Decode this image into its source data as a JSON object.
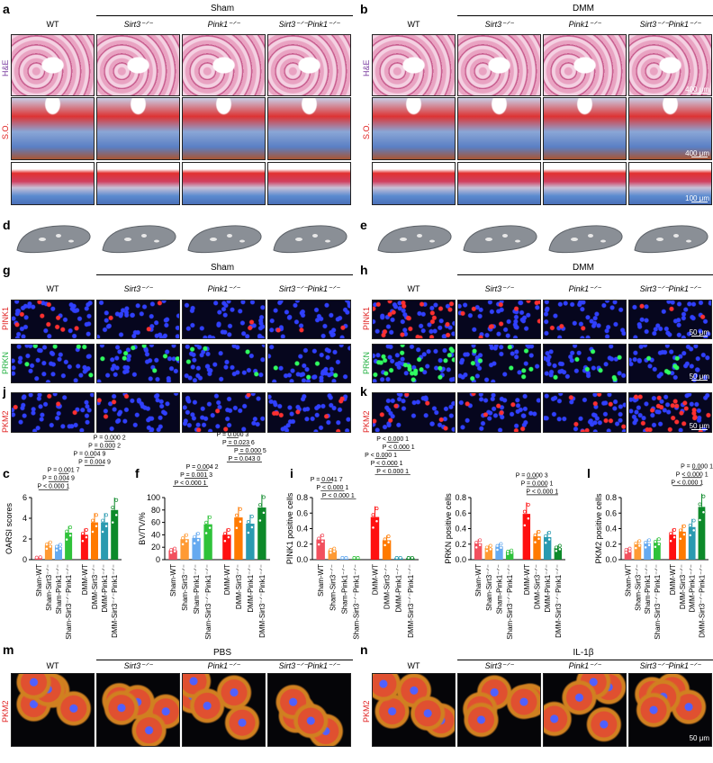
{
  "panel_letters": {
    "a": "a",
    "b": "b",
    "c": "c",
    "d": "d",
    "e": "e",
    "f": "f",
    "g": "g",
    "h": "h",
    "i": "i",
    "j": "j",
    "k": "k",
    "l": "l",
    "m": "m",
    "n": "n"
  },
  "groups": {
    "sham": "Sham",
    "dmm": "DMM",
    "pbs": "PBS",
    "il1b": "IL-1β"
  },
  "columns": [
    "WT",
    "Sirt3⁻ᐟ⁻",
    "Pink1⁻ᐟ⁻",
    "Sirt3⁻ᐟ⁻Pink1⁻ᐟ⁻"
  ],
  "stains": {
    "he": "H&E",
    "so": "S.O.",
    "pink1": "PINK1",
    "prkn": "PRKN",
    "pkm2": "PKM2"
  },
  "stain_colors": {
    "he": "#7b3fa0",
    "so": "#e02020",
    "pink1": "#e02020",
    "prkn": "#20b040",
    "pkm2": "#e02020"
  },
  "scale_bars": {
    "s400": "400 μm",
    "s100": "100 μm",
    "s50": "50 μm"
  },
  "chart_data": [
    {
      "type": "bar",
      "panel": "c",
      "ylabel": "OARSI scores",
      "ylim": [
        0,
        6
      ],
      "yticks": [
        "0",
        "2",
        "4",
        "6"
      ],
      "categories": [
        "Sham-WT",
        "Sham-Sirt3⁻ᐟ⁻",
        "Sham-Pink1⁻ᐟ⁻",
        "Sham-Sirt3⁻ᐟ⁻Pink1⁻ᐟ⁻",
        "DMM-WT",
        "DMM-Sirt3⁻ᐟ⁻",
        "DMM-Pink1⁻ᐟ⁻",
        "DMM-Sirt3⁻ᐟ⁻Pink1⁻ᐟ⁻"
      ],
      "values": [
        0.2,
        1.4,
        1.2,
        2.6,
        2.4,
        3.6,
        3.6,
        4.8
      ],
      "comparisons": [
        {
          "a": 0,
          "b": 3,
          "p": "P < 0.000 1"
        },
        {
          "a": 1,
          "b": 3,
          "p": "P = 0.004 9"
        },
        {
          "a": 2,
          "b": 3,
          "p": "P = 0.001 7"
        },
        {
          "a": 4,
          "b": 6,
          "p": "P = 0.004 9"
        },
        {
          "a": 4,
          "b": 5,
          "p": "P = 0.004 9"
        },
        {
          "a": 5,
          "b": 7,
          "p": "P = 0.000 2"
        },
        {
          "a": 6,
          "b": 7,
          "p": "P = 0.000 2"
        }
      ]
    },
    {
      "type": "bar",
      "panel": "f",
      "ylabel": "BV/TV/%",
      "ylim": [
        0,
        100
      ],
      "yticks": [
        "0",
        "20",
        "40",
        "60",
        "80",
        "100"
      ],
      "categories": [
        "Sham-WT",
        "Sham-Sirt3⁻ᐟ⁻",
        "Sham-Pink1⁻ᐟ⁻",
        "Sham-Sirt3⁻ᐟ⁻Pink1⁻ᐟ⁻",
        "DMM-WT",
        "DMM-Sirt3⁻ᐟ⁻",
        "DMM-Pink1⁻ᐟ⁻",
        "DMM-Sirt3⁻ᐟ⁻Pink1⁻ᐟ⁻"
      ],
      "values": [
        15,
        33,
        35,
        57,
        40,
        68,
        58,
        84
      ],
      "comparisons": [
        {
          "a": 0,
          "b": 3,
          "p": "P < 0.000 1"
        },
        {
          "a": 1,
          "b": 3,
          "p": "P = 0.001 3"
        },
        {
          "a": 2,
          "b": 3,
          "p": "P = 0.004 2"
        },
        {
          "a": 4,
          "b": 7,
          "p": "P = 0.043 0"
        },
        {
          "a": 5,
          "b": 7,
          "p": "P = 0.000 5"
        },
        {
          "a": 4,
          "b": 6,
          "p": "P = 0.023 6"
        },
        {
          "a": 4,
          "b": 5,
          "p": "P = 0.000 3"
        }
      ]
    },
    {
      "type": "bar",
      "panel": "i",
      "ylabel": "PINK1 positive cells",
      "ylim": [
        0,
        0.8
      ],
      "yticks": [
        "0.0",
        "0.2",
        "0.4",
        "0.6",
        "0.8"
      ],
      "categories": [
        "Sham-WT",
        "Sham-Sirt3⁻ᐟ⁻",
        "Sham-Pink1⁻ᐟ⁻",
        "Sham-Sirt3⁻ᐟ⁻Pink1⁻ᐟ⁻",
        "DMM-WT",
        "DMM-Sirt3⁻ᐟ⁻",
        "DMM-Pink1⁻ᐟ⁻",
        "DMM-Sirt3⁻ᐟ⁻Pink1⁻ᐟ⁻"
      ],
      "values": [
        0.26,
        0.12,
        0.01,
        0.01,
        0.55,
        0.25,
        0.02,
        0.02
      ],
      "comparisons": [
        {
          "a": 0,
          "b": 3,
          "p": "P < 0.000 1"
        },
        {
          "a": 0,
          "b": 2,
          "p": "P < 0.000 1"
        },
        {
          "a": 0,
          "b": 1,
          "p": "P = 0.041 7"
        },
        {
          "a": 4,
          "b": 7,
          "p": "P < 0.000 1"
        },
        {
          "a": 4,
          "b": 6,
          "p": "P < 0.000 1"
        },
        {
          "a": 4,
          "b": 5,
          "p": "P < 0.000 1"
        },
        {
          "a": 5,
          "b": 7,
          "p": "P < 0.000 1"
        },
        {
          "a": 5,
          "b": 6,
          "p": "P < 0.000 1"
        }
      ]
    },
    {
      "type": "bar",
      "panel": "i",
      "ylabel": "PRKN positive cells",
      "ylim": [
        0,
        0.8
      ],
      "yticks": [
        "0.0",
        "0.2",
        "0.4",
        "0.6",
        "0.8"
      ],
      "categories": [
        "Sham-WT",
        "Sham-Sirt3⁻ᐟ⁻",
        "Sham-Pink1⁻ᐟ⁻",
        "Sham-Sirt3⁻ᐟ⁻Pink1⁻ᐟ⁻",
        "DMM-WT",
        "DMM-Sirt3⁻ᐟ⁻",
        "DMM-Pink1⁻ᐟ⁻",
        "DMM-Sirt3⁻ᐟ⁻Pink1⁻ᐟ⁻"
      ],
      "values": [
        0.21,
        0.15,
        0.17,
        0.1,
        0.59,
        0.3,
        0.29,
        0.15
      ],
      "comparisons": [
        {
          "a": 4,
          "b": 7,
          "p": "P < 0.000 1"
        },
        {
          "a": 4,
          "b": 6,
          "p": "P = 0.000 1"
        },
        {
          "a": 4,
          "b": 5,
          "p": "P = 0.000 3"
        }
      ]
    },
    {
      "type": "bar",
      "panel": "l",
      "ylabel": "PKM2 positive cells",
      "ylim": [
        0,
        0.8
      ],
      "yticks": [
        "0.0",
        "0.2",
        "0.4",
        "0.6",
        "0.8"
      ],
      "categories": [
        "Sham-WT",
        "Sham-Sirt3⁻ᐟ⁻",
        "Sham-Pink1⁻ᐟ⁻",
        "Sham-Sirt3⁻ᐟ⁻Pink1⁻ᐟ⁻",
        "DMM-WT",
        "DMM-Sirt3⁻ᐟ⁻",
        "DMM-Pink1⁻ᐟ⁻",
        "DMM-Sirt3⁻ᐟ⁻Pink1⁻ᐟ⁻"
      ],
      "values": [
        0.12,
        0.2,
        0.21,
        0.22,
        0.32,
        0.36,
        0.42,
        0.68
      ],
      "comparisons": [
        {
          "a": 4,
          "b": 7,
          "p": "P < 0.000 1"
        },
        {
          "a": 5,
          "b": 7,
          "p": "P < 0.000 1"
        },
        {
          "a": 6,
          "b": 7,
          "p": "P = 0.000 1"
        }
      ]
    }
  ],
  "bar_colors": [
    "#f2505e",
    "#ff9a33",
    "#66aaf0",
    "#2fc23a",
    "#ff1010",
    "#ff7a00",
    "#2a9ab0",
    "#0d8a2a"
  ]
}
